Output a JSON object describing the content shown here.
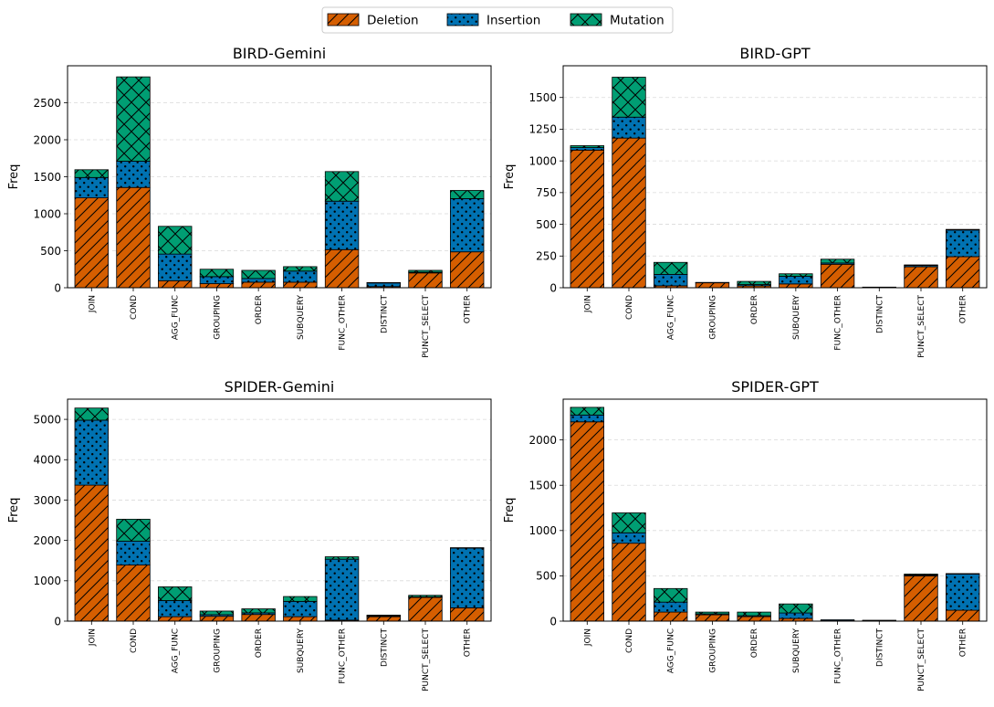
{
  "legend": {
    "entries": [
      {
        "name": "Deletion",
        "color": "#D55E00",
        "pattern": "diagonal-hatch"
      },
      {
        "name": "Insertion",
        "color": "#0072B2",
        "pattern": "dots"
      },
      {
        "name": "Mutation",
        "color": "#009E73",
        "pattern": "cross-hatch"
      }
    ]
  },
  "chart_data": [
    {
      "type": "bar",
      "stacked": true,
      "title": "BIRD-Gemini",
      "xlabel": "",
      "ylabel": "Freq",
      "ylim": [
        0,
        3000
      ],
      "yticks": [
        0,
        500,
        1000,
        1500,
        2000,
        2500
      ],
      "grid": "y-dashed",
      "categories": [
        "JOIN",
        "COND",
        "AGG_FUNC",
        "GROUPING",
        "ORDER",
        "SUBQUERY",
        "FUNC_OTHER",
        "DISTINCT",
        "PUNCT_SELECT",
        "OTHER"
      ],
      "series": [
        {
          "name": "Deletion",
          "values": [
            1215,
            1355,
            95,
            55,
            75,
            75,
            515,
            15,
            200,
            485
          ]
        },
        {
          "name": "Insertion",
          "values": [
            275,
            355,
            360,
            95,
            50,
            150,
            655,
            50,
            10,
            720
          ]
        },
        {
          "name": "Mutation",
          "values": [
            105,
            1140,
            375,
            100,
            110,
            60,
            400,
            5,
            25,
            110
          ]
        }
      ]
    },
    {
      "type": "bar",
      "stacked": true,
      "title": "BIRD-GPT",
      "xlabel": "",
      "ylabel": "Freq",
      "ylim": [
        0,
        1750
      ],
      "yticks": [
        0,
        250,
        500,
        750,
        1000,
        1250,
        1500
      ],
      "grid": "y-dashed",
      "categories": [
        "JOIN",
        "COND",
        "AGG_FUNC",
        "GROUPING",
        "ORDER",
        "SUBQUERY",
        "FUNC_OTHER",
        "DISTINCT",
        "PUNCT_SELECT",
        "OTHER"
      ],
      "series": [
        {
          "name": "Deletion",
          "values": [
            1085,
            1180,
            15,
            40,
            15,
            30,
            185,
            5,
            165,
            245
          ]
        },
        {
          "name": "Insertion",
          "values": [
            20,
            165,
            90,
            0,
            10,
            60,
            10,
            0,
            10,
            210
          ]
        },
        {
          "name": "Mutation",
          "values": [
            15,
            315,
            95,
            2,
            25,
            20,
            30,
            0,
            5,
            5
          ]
        }
      ]
    },
    {
      "type": "bar",
      "stacked": true,
      "title": "SPIDER-Gemini",
      "xlabel": "",
      "ylabel": "Freq",
      "ylim": [
        0,
        5500
      ],
      "yticks": [
        0,
        1000,
        2000,
        3000,
        4000,
        5000
      ],
      "grid": "y-dashed",
      "categories": [
        "JOIN",
        "COND",
        "AGG_FUNC",
        "GROUPING",
        "ORDER",
        "SUBQUERY",
        "FUNC_OTHER",
        "DISTINCT",
        "PUNCT_SELECT",
        "OTHER"
      ],
      "series": [
        {
          "name": "Deletion",
          "values": [
            3370,
            1390,
            110,
            120,
            165,
            110,
            25,
            110,
            590,
            330
          ]
        },
        {
          "name": "Insertion",
          "values": [
            1610,
            590,
            400,
            40,
            40,
            380,
            1510,
            20,
            10,
            1480
          ]
        },
        {
          "name": "Mutation",
          "values": [
            300,
            545,
            340,
            90,
            100,
            120,
            60,
            20,
            40,
            10
          ]
        }
      ]
    },
    {
      "type": "bar",
      "stacked": true,
      "title": "SPIDER-GPT",
      "xlabel": "",
      "ylabel": "Freq",
      "ylim": [
        0,
        2450
      ],
      "yticks": [
        0,
        500,
        1000,
        1500,
        2000
      ],
      "grid": "y-dashed",
      "categories": [
        "JOIN",
        "COND",
        "AGG_FUNC",
        "GROUPING",
        "ORDER",
        "SUBQUERY",
        "FUNC_OTHER",
        "DISTINCT",
        "PUNCT_SELECT",
        "OTHER"
      ],
      "series": [
        {
          "name": "Deletion",
          "values": [
            2200,
            860,
            100,
            70,
            50,
            30,
            5,
            5,
            500,
            120
          ]
        },
        {
          "name": "Insertion",
          "values": [
            75,
            115,
            110,
            10,
            10,
            60,
            10,
            5,
            10,
            400
          ]
        },
        {
          "name": "Mutation",
          "values": [
            85,
            220,
            150,
            20,
            40,
            100,
            0,
            0,
            10,
            5
          ]
        }
      ]
    }
  ]
}
